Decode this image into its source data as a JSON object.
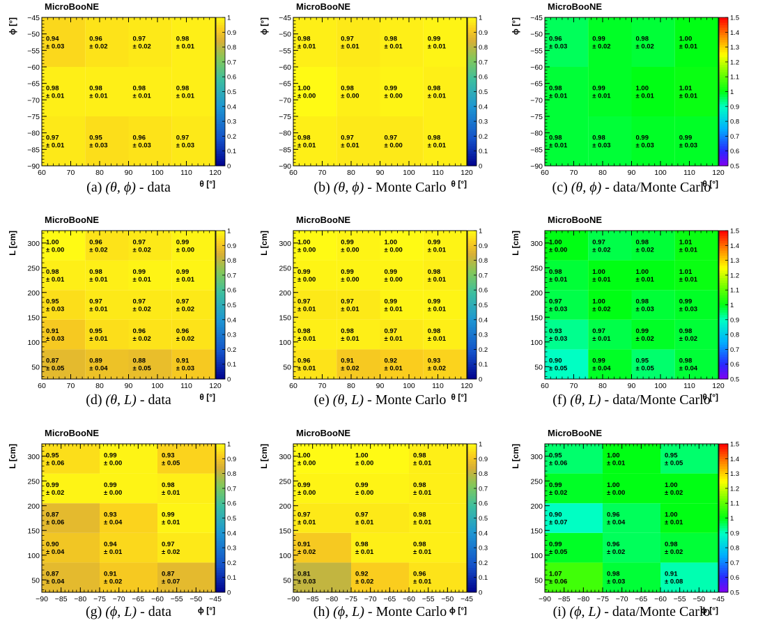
{
  "brand": "MicroBooNE",
  "axis_labels": {
    "theta": "θ [°]",
    "phi": "ϕ [°]",
    "L": "L [cm]"
  },
  "chart_data": [
    {
      "type": "heatmap",
      "id": "a",
      "caption_label": "(a)",
      "caption_vars": "(θ, ϕ)",
      "caption_suffix": " - data",
      "x_var": "theta",
      "y_var": "phi",
      "x_edges": [
        60,
        75,
        90,
        105,
        120
      ],
      "y_edges": [
        -90,
        -75,
        -60,
        -45
      ],
      "x_ticks": [
        60,
        70,
        80,
        90,
        100,
        110,
        120
      ],
      "y_ticks": [
        -90,
        -85,
        -80,
        -75,
        -70,
        -65,
        -60,
        -55,
        -50,
        -45
      ],
      "colorscale": "viridis",
      "zlim": [
        0,
        1
      ],
      "z_ticks": [
        "0",
        "0.1",
        "0.2",
        "0.3",
        "0.4",
        "0.5",
        "0.6",
        "0.7",
        "0.8",
        "0.9",
        "1"
      ],
      "values": [
        [
          0.97,
          0.95,
          0.96,
          0.97
        ],
        [
          0.98,
          0.98,
          0.98,
          0.98
        ],
        [
          0.94,
          0.96,
          0.97,
          0.98
        ]
      ],
      "errors": [
        [
          "0.01",
          "0.03",
          "0.03",
          "0.03"
        ],
        [
          "0.01",
          "0.01",
          "0.01",
          "0.01"
        ],
        [
          "0.03",
          "0.02",
          "0.02",
          "0.01"
        ]
      ]
    },
    {
      "type": "heatmap",
      "id": "b",
      "caption_label": "(b)",
      "caption_vars": "(θ, ϕ)",
      "caption_suffix": " - Monte Carlo",
      "x_var": "theta",
      "y_var": "phi",
      "x_edges": [
        60,
        75,
        90,
        105,
        120
      ],
      "y_edges": [
        -90,
        -75,
        -60,
        -45
      ],
      "x_ticks": [
        60,
        70,
        80,
        90,
        100,
        110,
        120
      ],
      "y_ticks": [
        -90,
        -85,
        -80,
        -75,
        -70,
        -65,
        -60,
        -55,
        -50,
        -45
      ],
      "colorscale": "viridis",
      "zlim": [
        0,
        1
      ],
      "z_ticks": [
        "0",
        "0.1",
        "0.2",
        "0.3",
        "0.4",
        "0.5",
        "0.6",
        "0.7",
        "0.8",
        "0.9",
        "1"
      ],
      "values": [
        [
          0.98,
          0.97,
          0.97,
          0.98
        ],
        [
          1.0,
          0.98,
          0.99,
          0.98
        ],
        [
          0.98,
          0.97,
          0.98,
          0.99
        ]
      ],
      "errors": [
        [
          "0.01",
          "0.01",
          "0.00",
          "0.01"
        ],
        [
          "0.00",
          "0.00",
          "0.00",
          "0.01"
        ],
        [
          "0.01",
          "0.01",
          "0.01",
          "0.01"
        ]
      ]
    },
    {
      "type": "heatmap",
      "id": "c",
      "caption_label": "(c)",
      "caption_vars": "(θ, ϕ)",
      "caption_suffix": " - data/Monte Carlo",
      "x_var": "theta",
      "y_var": "phi",
      "x_edges": [
        60,
        75,
        90,
        105,
        120
      ],
      "y_edges": [
        -90,
        -75,
        -60,
        -45
      ],
      "x_ticks": [
        60,
        70,
        80,
        90,
        100,
        110,
        120
      ],
      "y_ticks": [
        -90,
        -85,
        -80,
        -75,
        -70,
        -65,
        -60,
        -55,
        -50,
        -45
      ],
      "colorscale": "rainbow",
      "zlim": [
        0.5,
        1.5
      ],
      "z_ticks": [
        "0.5",
        "0.6",
        "0.7",
        "0.8",
        "0.9",
        "1",
        "1.1",
        "1.2",
        "1.3",
        "1.4",
        "1.5"
      ],
      "values": [
        [
          0.98,
          0.98,
          0.99,
          0.99
        ],
        [
          0.98,
          0.99,
          1.0,
          1.01
        ],
        [
          0.96,
          0.99,
          0.98,
          1.0
        ]
      ],
      "errors": [
        [
          "0.01",
          "0.03",
          "0.03",
          "0.03"
        ],
        [
          "0.01",
          "0.01",
          "0.01",
          "0.01"
        ],
        [
          "0.03",
          "0.02",
          "0.02",
          "0.01"
        ]
      ]
    },
    {
      "type": "heatmap",
      "id": "d",
      "caption_label": "(d)",
      "caption_vars": "(θ, L)",
      "caption_suffix": " - data",
      "x_var": "theta",
      "y_var": "L",
      "x_edges": [
        60,
        75,
        90,
        105,
        120
      ],
      "y_edges": [
        25,
        85,
        145,
        205,
        265,
        325
      ],
      "x_ticks": [
        60,
        70,
        80,
        90,
        100,
        110,
        120
      ],
      "y_ticks": [
        50,
        100,
        150,
        200,
        250,
        300
      ],
      "colorscale": "viridis",
      "zlim": [
        0,
        1
      ],
      "z_ticks": [
        "0",
        "0.1",
        "0.2",
        "0.3",
        "0.4",
        "0.5",
        "0.6",
        "0.7",
        "0.8",
        "0.9",
        "1"
      ],
      "values": [
        [
          0.87,
          0.89,
          0.88,
          0.91
        ],
        [
          0.91,
          0.95,
          0.96,
          0.96
        ],
        [
          0.95,
          0.97,
          0.97,
          0.97
        ],
        [
          0.98,
          0.98,
          0.99,
          0.99
        ],
        [
          1.0,
          0.96,
          0.97,
          0.99
        ]
      ],
      "errors": [
        [
          "0.05",
          "0.04",
          "0.05",
          "0.03"
        ],
        [
          "0.03",
          "0.01",
          "0.02",
          "0.02"
        ],
        [
          "0.03",
          "0.01",
          "0.02",
          "0.02"
        ],
        [
          "0.01",
          "0.01",
          "0.01",
          "0.01"
        ],
        [
          "0.00",
          "0.02",
          "0.02",
          "0.00"
        ]
      ]
    },
    {
      "type": "heatmap",
      "id": "e",
      "caption_label": "(e)",
      "caption_vars": "(θ, L)",
      "caption_suffix": " - Monte Carlo",
      "x_var": "theta",
      "y_var": "L",
      "x_edges": [
        60,
        75,
        90,
        105,
        120
      ],
      "y_edges": [
        25,
        85,
        145,
        205,
        265,
        325
      ],
      "x_ticks": [
        60,
        70,
        80,
        90,
        100,
        110,
        120
      ],
      "y_ticks": [
        50,
        100,
        150,
        200,
        250,
        300
      ],
      "colorscale": "viridis",
      "zlim": [
        0,
        1
      ],
      "z_ticks": [
        "0",
        "0.1",
        "0.2",
        "0.3",
        "0.4",
        "0.5",
        "0.6",
        "0.7",
        "0.8",
        "0.9",
        "1"
      ],
      "values": [
        [
          0.96,
          0.91,
          0.92,
          0.93
        ],
        [
          0.98,
          0.98,
          0.97,
          0.98
        ],
        [
          0.97,
          0.97,
          0.99,
          0.99
        ],
        [
          0.99,
          0.99,
          0.99,
          0.98
        ],
        [
          1.0,
          0.99,
          1.0,
          0.99
        ]
      ],
      "errors": [
        [
          "0.01",
          "0.02",
          "0.01",
          "0.02"
        ],
        [
          "0.01",
          "0.01",
          "0.01",
          "0.01"
        ],
        [
          "0.01",
          "0.01",
          "0.01",
          "0.01"
        ],
        [
          "0.00",
          "0.00",
          "0.00",
          "0.01"
        ],
        [
          "0.00",
          "0.00",
          "0.00",
          "0.01"
        ]
      ]
    },
    {
      "type": "heatmap",
      "id": "f",
      "caption_label": "(f)",
      "caption_vars": "(θ, L)",
      "caption_suffix": " - data/Monte Carlo",
      "x_var": "theta",
      "y_var": "L",
      "x_edges": [
        60,
        75,
        90,
        105,
        120
      ],
      "y_edges": [
        25,
        85,
        145,
        205,
        265,
        325
      ],
      "x_ticks": [
        60,
        70,
        80,
        90,
        100,
        110,
        120
      ],
      "y_ticks": [
        50,
        100,
        150,
        200,
        250,
        300
      ],
      "colorscale": "rainbow",
      "zlim": [
        0.5,
        1.5
      ],
      "z_ticks": [
        "0.5",
        "0.6",
        "0.7",
        "0.8",
        "0.9",
        "1",
        "1.1",
        "1.2",
        "1.3",
        "1.4",
        "1.5"
      ],
      "values": [
        [
          0.9,
          0.99,
          0.95,
          0.98
        ],
        [
          0.93,
          0.97,
          0.99,
          0.98
        ],
        [
          0.97,
          1.0,
          0.98,
          0.99
        ],
        [
          0.98,
          1.0,
          1.0,
          1.01
        ],
        [
          1.0,
          0.97,
          0.98,
          1.01
        ]
      ],
      "errors": [
        [
          "0.05",
          "0.04",
          "0.05",
          "0.04"
        ],
        [
          "0.03",
          "0.01",
          "0.02",
          "0.02"
        ],
        [
          "0.03",
          "0.02",
          "0.03",
          "0.03"
        ],
        [
          "0.01",
          "0.01",
          "0.01",
          "0.01"
        ],
        [
          "0.00",
          "0.02",
          "0.02",
          "0.01"
        ]
      ]
    },
    {
      "type": "heatmap",
      "id": "g",
      "caption_label": "(g)",
      "caption_vars": "(ϕ, L)",
      "caption_suffix": " - data",
      "x_var": "phi",
      "y_var": "L",
      "x_edges": [
        -90,
        -75,
        -60,
        -45
      ],
      "y_edges": [
        25,
        85,
        145,
        205,
        265,
        325
      ],
      "x_ticks": [
        -90,
        -85,
        -80,
        -75,
        -70,
        -65,
        -60,
        -55,
        -50,
        -45
      ],
      "y_ticks": [
        50,
        100,
        150,
        200,
        250,
        300
      ],
      "colorscale": "viridis",
      "zlim": [
        0,
        1
      ],
      "z_ticks": [
        "0",
        "0.1",
        "0.2",
        "0.3",
        "0.4",
        "0.5",
        "0.6",
        "0.7",
        "0.8",
        "0.9",
        "1"
      ],
      "values": [
        [
          0.87,
          0.91,
          0.87
        ],
        [
          0.9,
          0.94,
          0.97
        ],
        [
          0.87,
          0.93,
          0.99
        ],
        [
          0.99,
          0.99,
          0.98
        ],
        [
          0.95,
          0.99,
          0.93
        ]
      ],
      "errors": [
        [
          "0.04",
          "0.02",
          "0.07"
        ],
        [
          "0.04",
          "0.01",
          "0.02"
        ],
        [
          "0.06",
          "0.04",
          "0.01"
        ],
        [
          "0.02",
          "0.00",
          "0.01"
        ],
        [
          "0.06",
          "0.00",
          "0.05"
        ]
      ]
    },
    {
      "type": "heatmap",
      "id": "h",
      "caption_label": "(h)",
      "caption_vars": "(ϕ, L)",
      "caption_suffix": " - Monte Carlo",
      "x_var": "phi",
      "y_var": "L",
      "x_edges": [
        -90,
        -75,
        -60,
        -45
      ],
      "y_edges": [
        25,
        85,
        145,
        205,
        265,
        325
      ],
      "x_ticks": [
        -90,
        -85,
        -80,
        -75,
        -70,
        -65,
        -60,
        -55,
        -50,
        -45
      ],
      "y_ticks": [
        50,
        100,
        150,
        200,
        250,
        300
      ],
      "colorscale": "viridis",
      "zlim": [
        0,
        1
      ],
      "z_ticks": [
        "0",
        "0.1",
        "0.2",
        "0.3",
        "0.4",
        "0.5",
        "0.6",
        "0.7",
        "0.8",
        "0.9",
        "1"
      ],
      "values": [
        [
          0.81,
          0.92,
          0.96
        ],
        [
          0.91,
          0.98,
          0.98
        ],
        [
          0.97,
          0.97,
          0.98
        ],
        [
          0.99,
          0.99,
          0.98
        ],
        [
          1.0,
          1.0,
          0.98
        ]
      ],
      "errors": [
        [
          "0.03",
          "0.02",
          "0.01"
        ],
        [
          "0.02",
          "0.01",
          "0.01"
        ],
        [
          "0.01",
          "0.01",
          "0.01"
        ],
        [
          "0.00",
          "0.00",
          "0.01"
        ],
        [
          "0.00",
          "0.00",
          "0.01"
        ]
      ]
    },
    {
      "type": "heatmap",
      "id": "i",
      "caption_label": "(i)",
      "caption_vars": "(ϕ, L)",
      "caption_suffix": " - data/Monte Carlo",
      "x_var": "phi",
      "y_var": "L",
      "x_edges": [
        -90,
        -75,
        -60,
        -45
      ],
      "y_edges": [
        25,
        85,
        145,
        205,
        265,
        325
      ],
      "x_ticks": [
        -90,
        -85,
        -80,
        -75,
        -70,
        -65,
        -60,
        -55,
        -50,
        -45
      ],
      "y_ticks": [
        50,
        100,
        150,
        200,
        250,
        300
      ],
      "colorscale": "rainbow",
      "zlim": [
        0.5,
        1.5
      ],
      "z_ticks": [
        "0.5",
        "0.6",
        "0.7",
        "0.8",
        "0.9",
        "1",
        "1.1",
        "1.2",
        "1.3",
        "1.4",
        "1.5"
      ],
      "values": [
        [
          1.07,
          0.98,
          0.91
        ],
        [
          0.99,
          0.96,
          0.98
        ],
        [
          0.9,
          0.96,
          1.0
        ],
        [
          0.99,
          1.0,
          1.0
        ],
        [
          0.95,
          1.0,
          0.95
        ]
      ],
      "errors": [
        [
          "0.06",
          "0.03",
          "0.08"
        ],
        [
          "0.05",
          "0.02",
          "0.02"
        ],
        [
          "0.07",
          "0.04",
          "0.01"
        ],
        [
          "0.02",
          "0.00",
          "0.02"
        ],
        [
          "0.06",
          "0.01",
          "0.05"
        ]
      ]
    }
  ]
}
